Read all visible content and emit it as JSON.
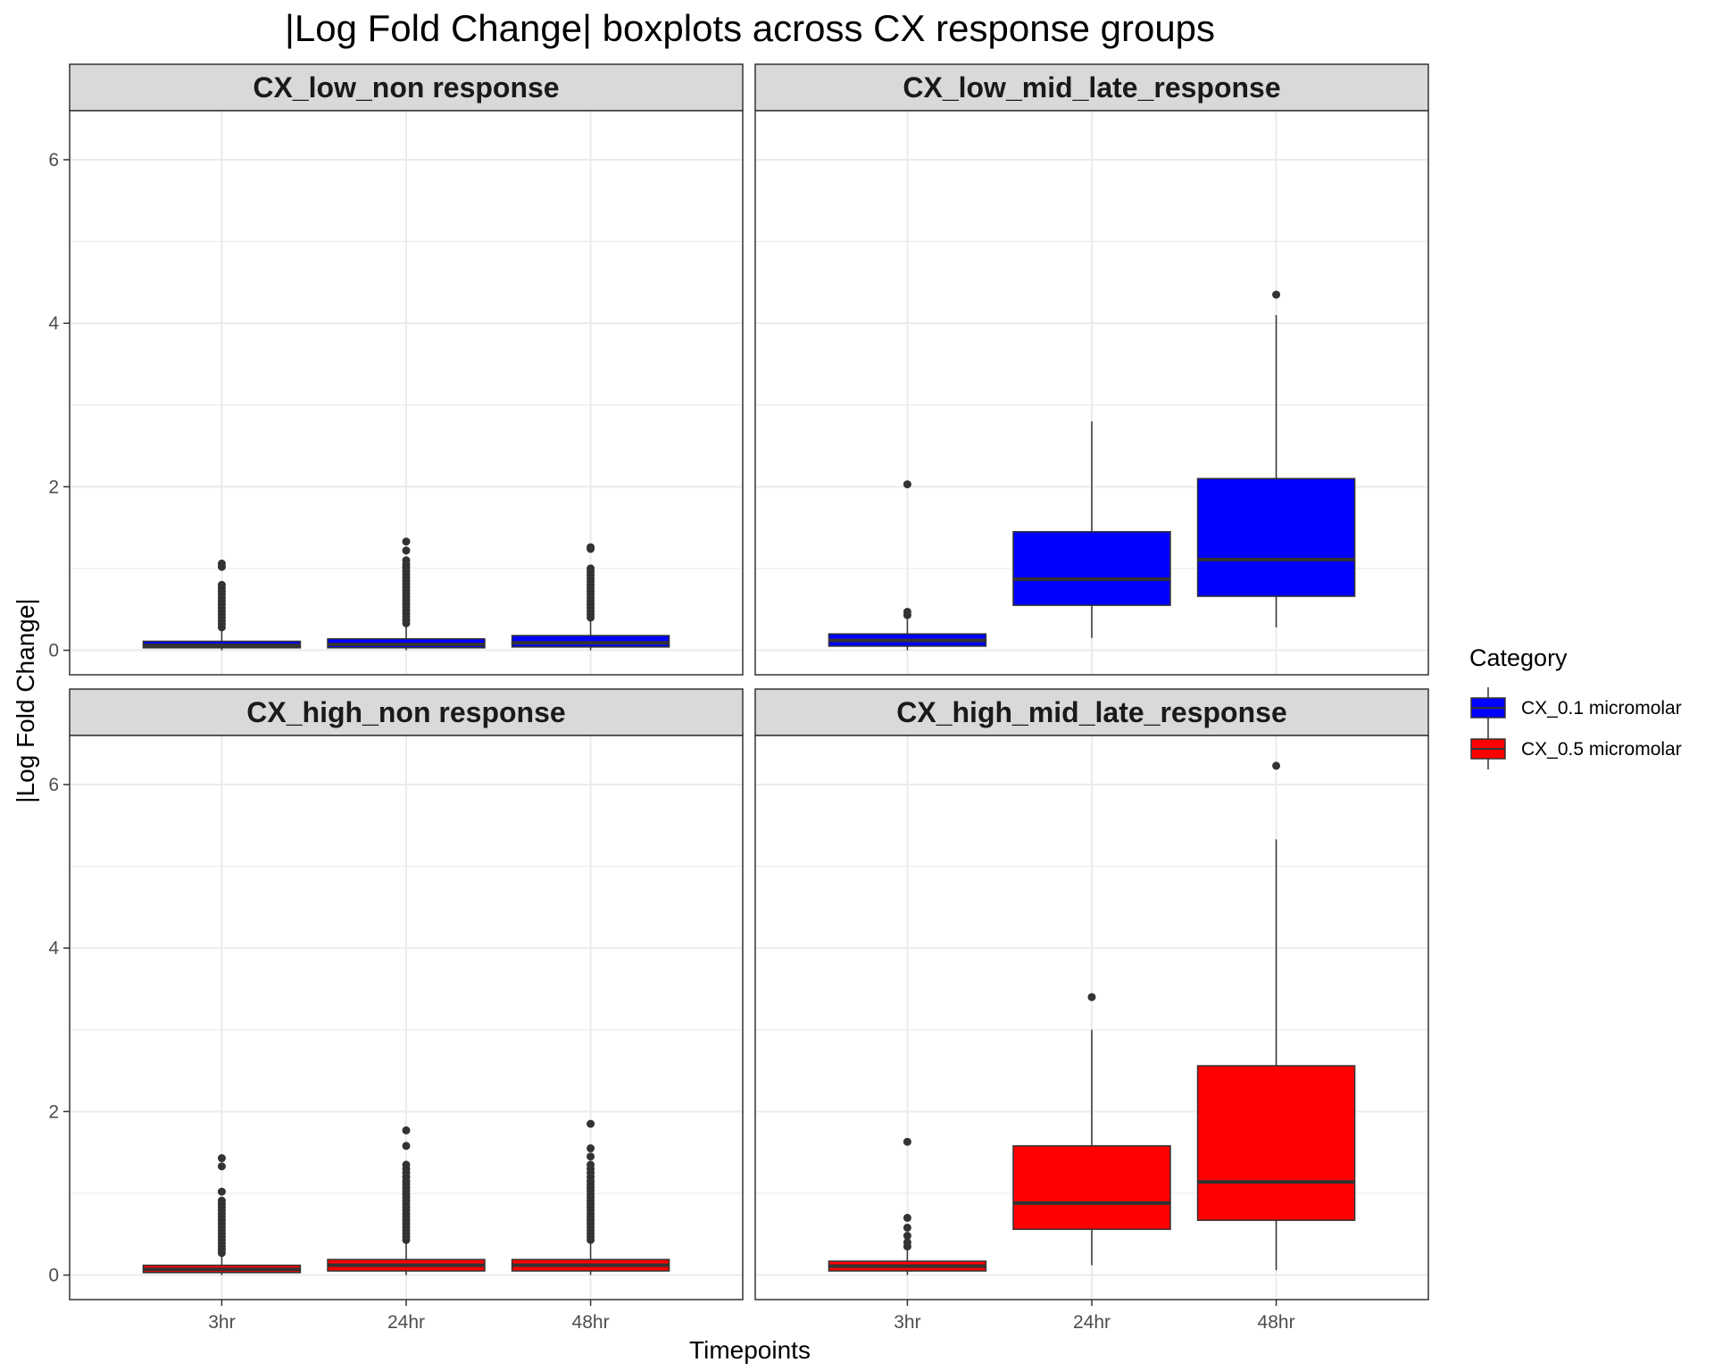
{
  "chart_data": {
    "type": "boxplot",
    "title": "|Log Fold Change| boxplots across CX response groups",
    "xlabel": "Timepoints",
    "ylabel": "|Log Fold Change|",
    "ylim": [
      -0.3,
      6.6
    ],
    "yticks": [
      0,
      2,
      4,
      6
    ],
    "categories": [
      "3hr",
      "24hr",
      "48hr"
    ],
    "grid": true,
    "legend": {
      "title": "Category",
      "position": "right",
      "entries": [
        {
          "label": "CX_0.1 micromolar",
          "color": "#0000ff"
        },
        {
          "label": "CX_0.5 micromolar",
          "color": "#ff0000"
        }
      ]
    },
    "colors": {
      "median": "#333333",
      "outlier": "#333333",
      "strip": "#d9d9d9",
      "grid": "#ebebeb"
    },
    "facets": [
      {
        "name": "CX_low_non response",
        "category": "CX_0.1 micromolar",
        "color": "#0000ff",
        "boxes": [
          {
            "x": "3hr",
            "whisker_low": 0.0,
            "q1": 0.03,
            "median": 0.06,
            "q3": 0.11,
            "whisker_high": 0.25,
            "outliers": [
              0.28,
              0.32,
              0.36,
              0.4,
              0.44,
              0.48,
              0.52,
              0.56,
              0.6,
              0.64,
              0.68,
              0.72,
              0.76,
              0.8,
              1.02,
              1.06
            ]
          },
          {
            "x": "24hr",
            "whisker_low": 0.0,
            "q1": 0.03,
            "median": 0.07,
            "q3": 0.14,
            "whisker_high": 0.3,
            "outliers": [
              0.33,
              0.37,
              0.41,
              0.45,
              0.49,
              0.53,
              0.57,
              0.61,
              0.65,
              0.69,
              0.73,
              0.77,
              0.81,
              0.85,
              0.89,
              0.93,
              0.97,
              1.01,
              1.05,
              1.1,
              1.22,
              1.33
            ]
          },
          {
            "x": "48hr",
            "whisker_low": 0.0,
            "q1": 0.04,
            "median": 0.09,
            "q3": 0.18,
            "whisker_high": 0.36,
            "outliers": [
              0.4,
              0.44,
              0.48,
              0.52,
              0.56,
              0.6,
              0.64,
              0.68,
              0.72,
              0.76,
              0.8,
              0.84,
              0.88,
              0.92,
              0.96,
              1.0,
              1.24,
              1.26
            ]
          }
        ]
      },
      {
        "name": "CX_low_mid_late_response",
        "category": "CX_0.1 micromolar",
        "color": "#0000ff",
        "boxes": [
          {
            "x": "3hr",
            "whisker_low": 0.0,
            "q1": 0.05,
            "median": 0.12,
            "q3": 0.2,
            "whisker_high": 0.38,
            "outliers": [
              0.43,
              0.47,
              2.03
            ]
          },
          {
            "x": "24hr",
            "whisker_low": 0.15,
            "q1": 0.55,
            "median": 0.87,
            "q3": 1.45,
            "whisker_high": 2.8,
            "outliers": []
          },
          {
            "x": "48hr",
            "whisker_low": 0.28,
            "q1": 0.66,
            "median": 1.11,
            "q3": 2.1,
            "whisker_high": 4.1,
            "outliers": [
              4.35
            ]
          }
        ]
      },
      {
        "name": "CX_high_non response",
        "category": "CX_0.5 micromolar",
        "color": "#ff0000",
        "boxes": [
          {
            "x": "3hr",
            "whisker_low": 0.0,
            "q1": 0.03,
            "median": 0.07,
            "q3": 0.12,
            "whisker_high": 0.24,
            "outliers": [
              0.27,
              0.31,
              0.35,
              0.39,
              0.43,
              0.47,
              0.51,
              0.55,
              0.59,
              0.63,
              0.67,
              0.71,
              0.75,
              0.79,
              0.83,
              0.87,
              0.91,
              1.02,
              1.33,
              1.43
            ]
          },
          {
            "x": "24hr",
            "whisker_low": 0.0,
            "q1": 0.05,
            "median": 0.12,
            "q3": 0.19,
            "whisker_high": 0.4,
            "outliers": [
              0.43,
              0.47,
              0.51,
              0.55,
              0.59,
              0.63,
              0.67,
              0.71,
              0.75,
              0.79,
              0.83,
              0.87,
              0.91,
              0.95,
              0.99,
              1.03,
              1.07,
              1.11,
              1.15,
              1.2,
              1.25,
              1.3,
              1.35,
              1.58,
              1.77
            ]
          },
          {
            "x": "48hr",
            "whisker_low": 0.0,
            "q1": 0.05,
            "median": 0.12,
            "q3": 0.19,
            "whisker_high": 0.4,
            "outliers": [
              0.43,
              0.47,
              0.51,
              0.55,
              0.59,
              0.63,
              0.67,
              0.71,
              0.75,
              0.79,
              0.83,
              0.87,
              0.91,
              0.95,
              0.99,
              1.03,
              1.07,
              1.11,
              1.15,
              1.2,
              1.25,
              1.3,
              1.35,
              1.45,
              1.55,
              1.85
            ]
          }
        ]
      },
      {
        "name": "CX_high_mid_late_response",
        "category": "CX_0.5 micromolar",
        "color": "#ff0000",
        "boxes": [
          {
            "x": "3hr",
            "whisker_low": 0.0,
            "q1": 0.05,
            "median": 0.11,
            "q3": 0.17,
            "whisker_high": 0.3,
            "outliers": [
              0.35,
              0.4,
              0.48,
              0.58,
              0.7,
              1.63
            ]
          },
          {
            "x": "24hr",
            "whisker_low": 0.12,
            "q1": 0.56,
            "median": 0.88,
            "q3": 1.58,
            "whisker_high": 3.0,
            "outliers": [
              3.4
            ]
          },
          {
            "x": "48hr",
            "whisker_low": 0.06,
            "q1": 0.67,
            "median": 1.14,
            "q3": 2.56,
            "whisker_high": 5.33,
            "outliers": [
              6.23
            ]
          }
        ]
      }
    ]
  }
}
